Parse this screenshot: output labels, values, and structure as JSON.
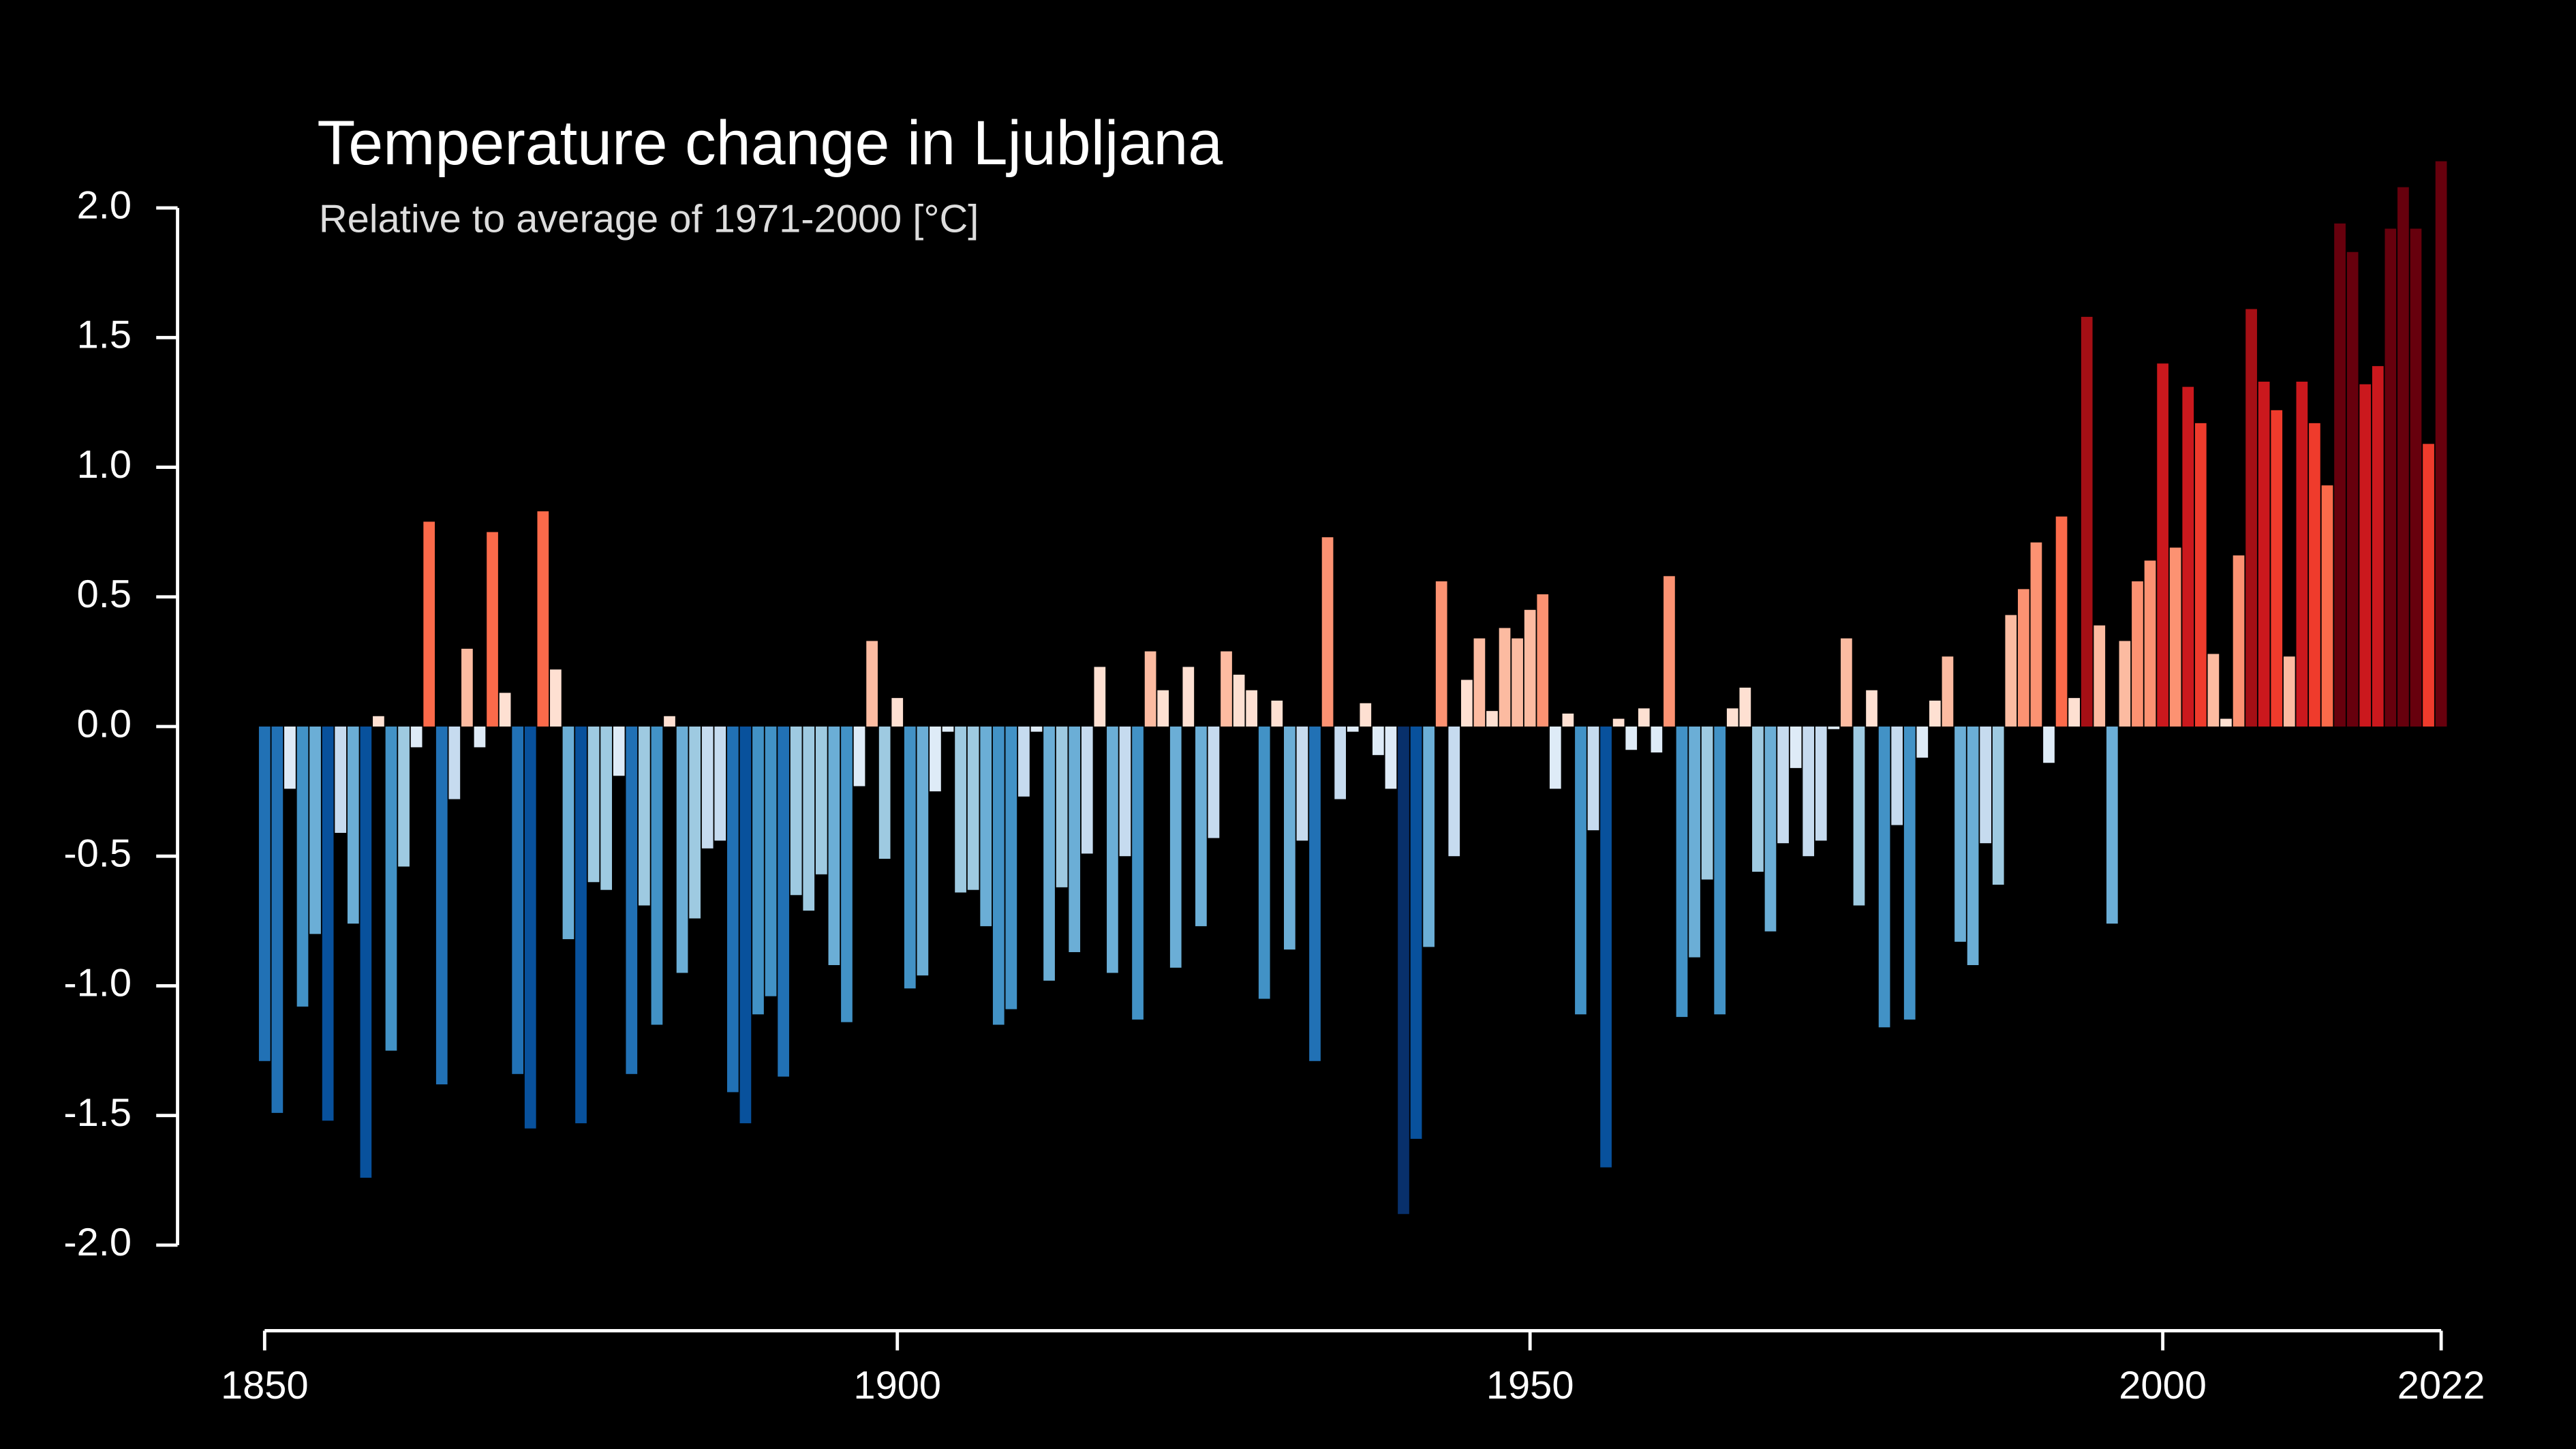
{
  "chart_data": {
    "type": "bar",
    "title": "Temperature change in Ljubljana",
    "subtitle": "Relative to average of 1971-2000  [°C]",
    "x": [
      1850,
      1851,
      1852,
      1853,
      1854,
      1855,
      1856,
      1857,
      1858,
      1859,
      1860,
      1861,
      1862,
      1863,
      1864,
      1865,
      1866,
      1867,
      1868,
      1869,
      1870,
      1871,
      1872,
      1873,
      1874,
      1875,
      1876,
      1877,
      1878,
      1879,
      1880,
      1881,
      1882,
      1883,
      1884,
      1885,
      1886,
      1887,
      1888,
      1889,
      1890,
      1891,
      1892,
      1893,
      1894,
      1895,
      1896,
      1897,
      1898,
      1899,
      1900,
      1901,
      1902,
      1903,
      1904,
      1905,
      1906,
      1907,
      1908,
      1909,
      1910,
      1911,
      1912,
      1913,
      1914,
      1915,
      1916,
      1917,
      1918,
      1919,
      1920,
      1921,
      1922,
      1923,
      1924,
      1925,
      1926,
      1927,
      1928,
      1929,
      1930,
      1931,
      1932,
      1933,
      1934,
      1935,
      1936,
      1937,
      1938,
      1939,
      1940,
      1941,
      1942,
      1943,
      1944,
      1945,
      1946,
      1947,
      1948,
      1949,
      1950,
      1951,
      1952,
      1953,
      1954,
      1955,
      1956,
      1957,
      1958,
      1959,
      1960,
      1961,
      1962,
      1963,
      1964,
      1965,
      1966,
      1967,
      1968,
      1969,
      1970,
      1971,
      1972,
      1973,
      1974,
      1975,
      1976,
      1977,
      1978,
      1979,
      1980,
      1981,
      1982,
      1983,
      1984,
      1985,
      1986,
      1987,
      1988,
      1989,
      1990,
      1991,
      1992,
      1993,
      1994,
      1995,
      1996,
      1997,
      1998,
      1999,
      2000,
      2001,
      2002,
      2003,
      2004,
      2005,
      2006,
      2007,
      2008,
      2009,
      2010,
      2011,
      2012,
      2013,
      2014,
      2015,
      2016,
      2017,
      2018,
      2019,
      2020,
      2021,
      2022
    ],
    "values": [
      -1.29,
      -1.49,
      -0.24,
      -1.08,
      -0.8,
      -1.52,
      -0.41,
      -0.76,
      -1.74,
      0.04,
      -1.25,
      -0.54,
      -0.08,
      0.79,
      -1.38,
      -0.28,
      0.3,
      -0.08,
      0.75,
      0.13,
      -1.34,
      -1.55,
      0.83,
      0.22,
      -0.82,
      -1.53,
      -0.6,
      -0.63,
      -0.19,
      -1.34,
      -0.69,
      -1.15,
      0.04,
      -0.95,
      -0.74,
      -0.47,
      -0.44,
      -1.41,
      -1.53,
      -1.11,
      -1.04,
      -1.35,
      -0.65,
      -0.71,
      -0.57,
      -0.92,
      -1.14,
      -0.23,
      0.33,
      -0.51,
      0.11,
      -1.01,
      -0.96,
      -0.25,
      -0.02,
      -0.64,
      -0.63,
      -0.77,
      -1.15,
      -1.09,
      -0.27,
      -0.02,
      -0.98,
      -0.62,
      -0.87,
      -0.49,
      0.23,
      -0.95,
      -0.5,
      -1.13,
      0.29,
      0.14,
      -0.93,
      0.23,
      -0.77,
      -0.43,
      0.29,
      0.2,
      0.14,
      -1.05,
      0.1,
      -0.86,
      -0.44,
      -1.29,
      0.73,
      -0.28,
      -0.02,
      0.09,
      -0.11,
      -0.24,
      -1.88,
      -1.59,
      -0.85,
      0.56,
      -0.5,
      0.18,
      0.34,
      0.06,
      0.38,
      0.34,
      0.45,
      0.51,
      -0.24,
      0.05,
      -1.11,
      -0.4,
      -1.7,
      0.03,
      -0.09,
      0.07,
      -0.1,
      0.58,
      -1.12,
      -0.89,
      -0.59,
      -1.11,
      0.07,
      0.15,
      -0.56,
      -0.79,
      -0.45,
      -0.16,
      -0.5,
      -0.44,
      -0.01,
      0.34,
      -0.69,
      0.14,
      -1.16,
      -0.38,
      -1.13,
      -0.12,
      0.1,
      0.27,
      -0.83,
      -0.92,
      -0.45,
      -0.61,
      0.43,
      0.53,
      0.71,
      -0.14,
      0.81,
      0.11,
      1.58,
      0.39,
      -0.76,
      0.33,
      0.56,
      0.64,
      1.4,
      0.69,
      1.31,
      1.17,
      0.28,
      0.03,
      0.66,
      1.61,
      1.33,
      1.22,
      0.27,
      1.33,
      1.17,
      0.93,
      1.94,
      1.83,
      1.32,
      1.39,
      1.92,
      2.08,
      1.92,
      1.09,
      2.18
    ],
    "colormap": [
      "#08306b",
      "#08519c",
      "#2171b5",
      "#4292c6",
      "#6baed6",
      "#9ecae1",
      "#c6dbef",
      "#deebf7",
      "#fee0d2",
      "#fcbba1",
      "#fc9272",
      "#fb6a4a",
      "#ef3b2c",
      "#cb181d",
      "#a50f15",
      "#67000d"
    ],
    "xlim": [
      1850,
      2022
    ],
    "xticks": [
      1850,
      1900,
      1950,
      2000,
      2022
    ],
    "ylim": [
      -2.33,
      2.2
    ],
    "yticks": [
      {
        "value": -2,
        "label": "-2.0"
      },
      {
        "value": -1.5,
        "label": "-1.5"
      },
      {
        "value": -1,
        "label": "-1.0"
      },
      {
        "value": -0.5,
        "label": "-0.5"
      },
      {
        "value": 0,
        "label": "0.0"
      },
      {
        "value": 0.5,
        "label": "0.5"
      },
      {
        "value": 1,
        "label": "1.0"
      },
      {
        "value": 1.5,
        "label": "1.5"
      },
      {
        "value": 2,
        "label": "2.0"
      }
    ],
    "grid": false
  }
}
